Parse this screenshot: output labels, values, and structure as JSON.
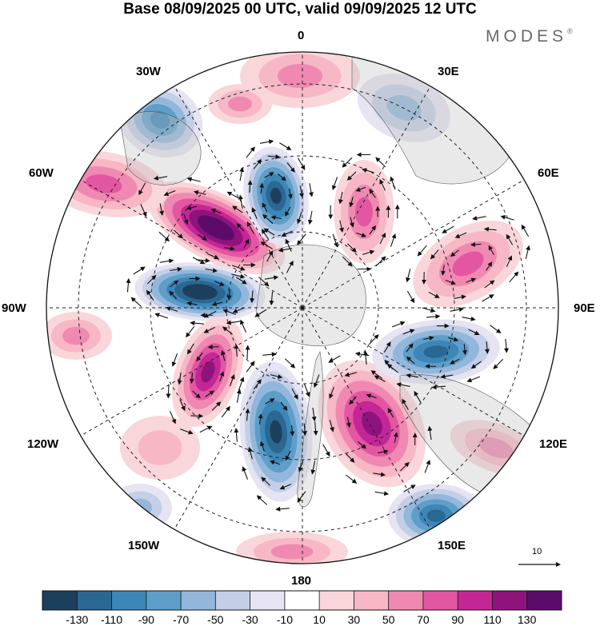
{
  "title": "Base 08/09/2025 00 UTC, valid 09/09/2025 12 UTC",
  "brand": {
    "name": "MODES",
    "mark": "®"
  },
  "map": {
    "projection": "north polar stereographic",
    "longitude_labels": {
      "top": "0",
      "top_right": "30E",
      "right_upper": "60E",
      "right": "90E",
      "right_lower": "120E",
      "bottom_right": "150E",
      "bottom": "180",
      "bottom_left": "150W",
      "left_lower": "120W",
      "left": "90W",
      "left_upper": "60W",
      "top_left": "30W"
    },
    "reference_vector": {
      "label": "10"
    }
  },
  "colorbar": {
    "colors": [
      "#1d3f5e",
      "#2a6891",
      "#3d86b8",
      "#5e9ec9",
      "#92b7da",
      "#c3cfe7",
      "#e6e4f2",
      "#ffffff",
      "#f9d6da",
      "#f7b7c5",
      "#f089b1",
      "#e356a2",
      "#c42795",
      "#8e137d",
      "#5b0c6a"
    ],
    "labels": [
      "-130",
      "-110",
      "-90",
      "-70",
      "-50",
      "-30",
      "-10",
      "10",
      "30",
      "50",
      "70",
      "90",
      "110",
      "130"
    ]
  }
}
